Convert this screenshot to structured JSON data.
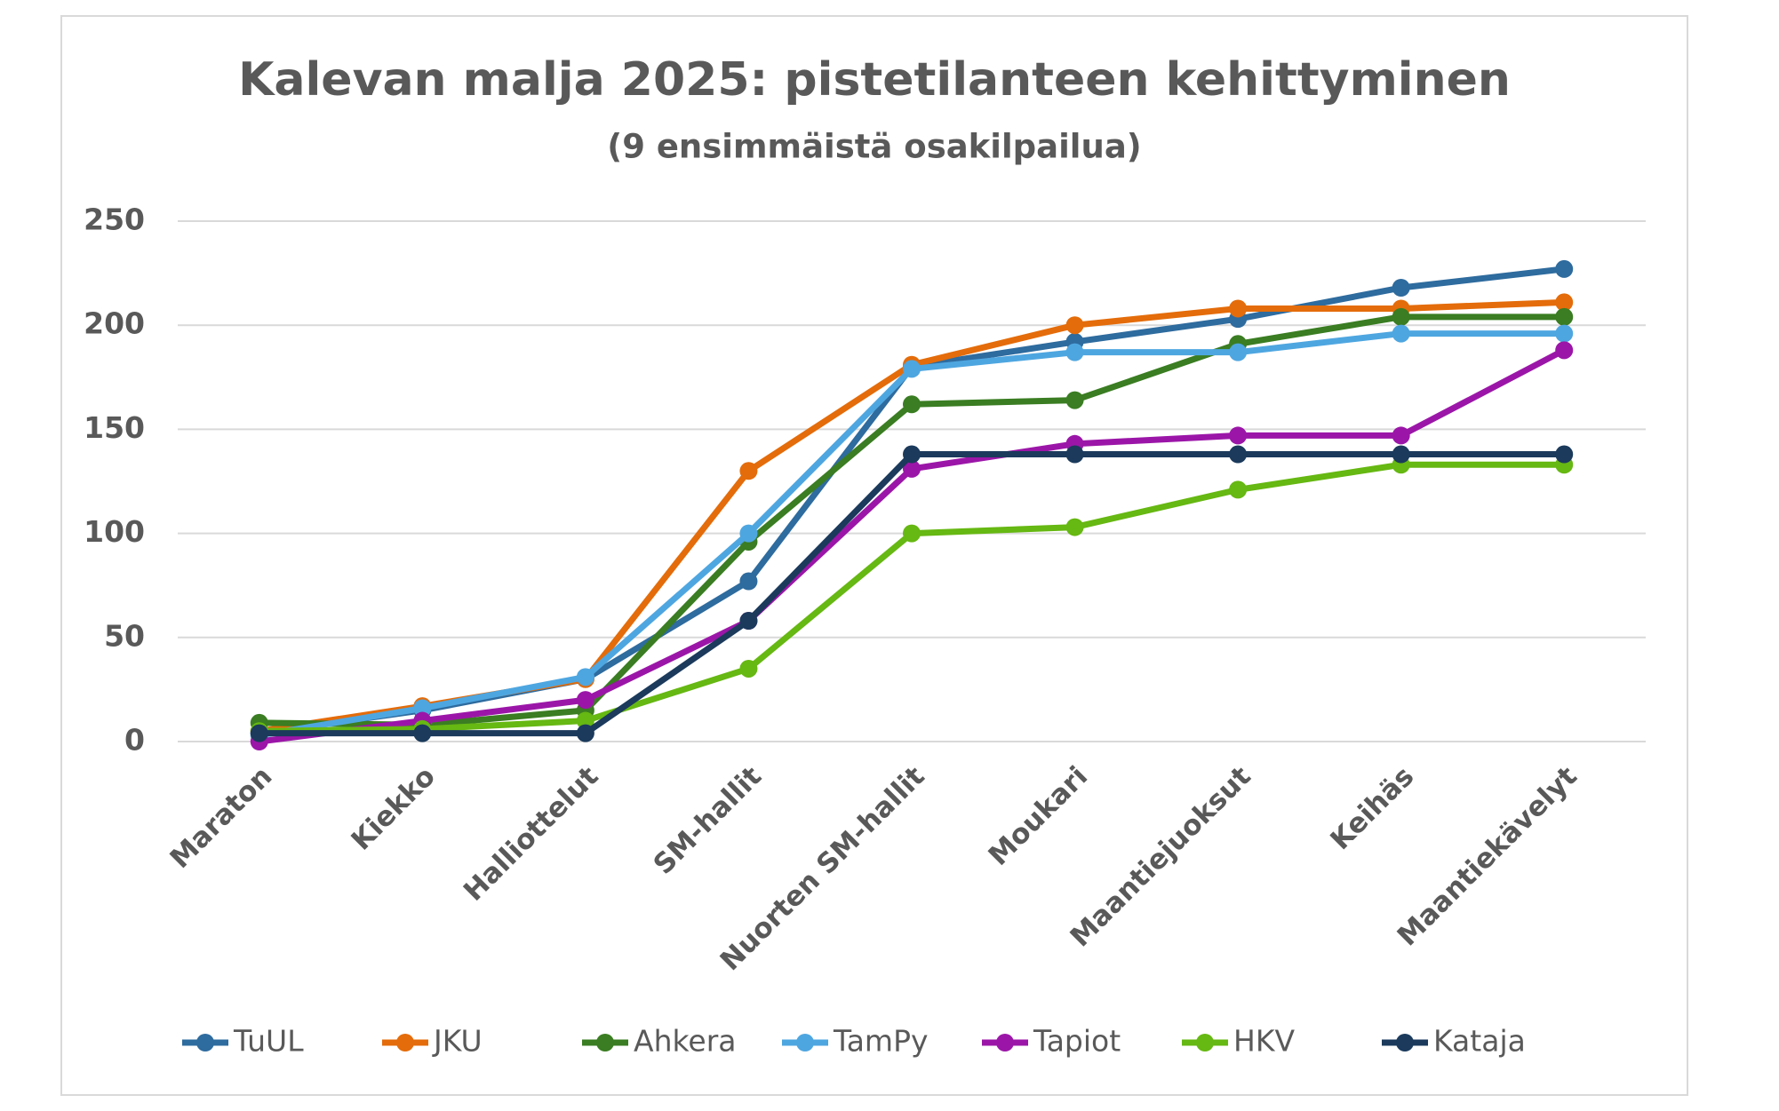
{
  "chart_data": {
    "type": "line",
    "title": "Kalevan malja 2025: pistetilanteen kehittyminen",
    "subtitle": "(9 ensimmäistä osakilpailua)",
    "categories": [
      "Maraton",
      "Kiekko",
      "Halliottelut",
      "SM-hallit",
      "Nuorten SM-hallit",
      "Moukari",
      "Maantiejuoksut",
      "Keihäs",
      "Maantiekävelyt"
    ],
    "series": [
      {
        "name": "TuUL",
        "color": "#2e6b9e",
        "values": [
          4,
          15,
          30,
          77,
          180,
          192,
          203,
          218,
          227
        ]
      },
      {
        "name": "JKU",
        "color": "#e46c0a",
        "values": [
          5,
          17,
          30,
          130,
          181,
          200,
          208,
          208,
          211
        ]
      },
      {
        "name": "Ahkera",
        "color": "#3a7d22",
        "values": [
          9,
          8,
          15,
          96,
          162,
          164,
          191,
          204,
          204
        ]
      },
      {
        "name": "TamPy",
        "color": "#4ea6e0",
        "values": [
          3,
          16,
          31,
          100,
          179,
          187,
          187,
          196,
          196
        ]
      },
      {
        "name": "Tapiot",
        "color": "#9b16a8",
        "values": [
          0,
          10,
          20,
          58,
          131,
          143,
          147,
          147,
          188
        ]
      },
      {
        "name": "HKV",
        "color": "#66b812",
        "values": [
          5,
          6,
          10,
          35,
          100,
          103,
          121,
          133,
          133
        ]
      },
      {
        "name": "Kataja",
        "color": "#1b3a5c",
        "values": [
          4,
          4,
          4,
          58,
          138,
          138,
          138,
          138,
          138
        ]
      }
    ],
    "ylim": [
      0,
      250
    ],
    "yticks": [
      0,
      50,
      100,
      150,
      200,
      250
    ],
    "grid": true,
    "legend": "bottom"
  }
}
